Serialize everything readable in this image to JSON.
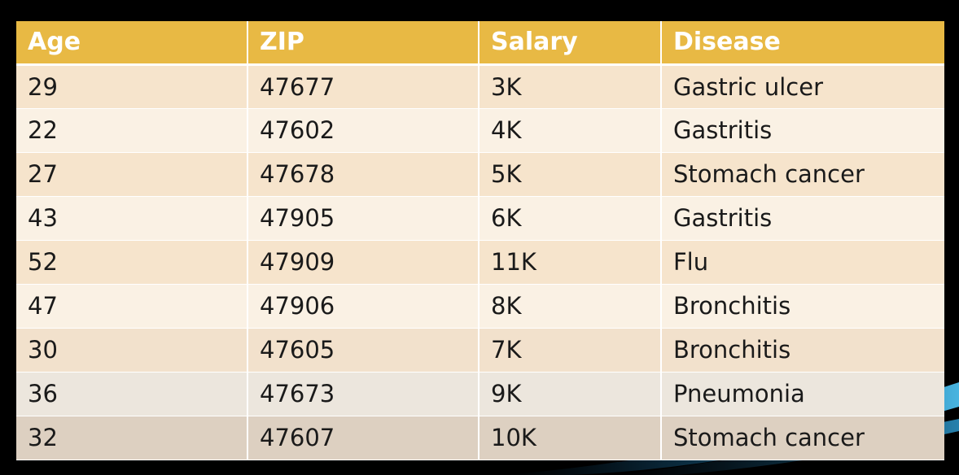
{
  "table": {
    "headers": [
      "Age",
      "ZIP",
      "Salary",
      "Disease"
    ],
    "rows": [
      [
        "29",
        "47677",
        "3K",
        "Gastric ulcer"
      ],
      [
        "22",
        "47602",
        "4K",
        "Gastritis"
      ],
      [
        "27",
        "47678",
        "5K",
        "Stomach cancer"
      ],
      [
        "43",
        "47905",
        "6K",
        "Gastritis"
      ],
      [
        "52",
        "47909",
        "11K",
        "Flu"
      ],
      [
        "47",
        "47906",
        "8K",
        "Bronchitis"
      ],
      [
        "30",
        "47605",
        "7K",
        "Bronchitis"
      ],
      [
        "36",
        "47673",
        "9K",
        "Pneumonia"
      ],
      [
        "32",
        "47607",
        "10K",
        "Stomach cancer"
      ]
    ]
  },
  "colors": {
    "header_background": "#e8b944",
    "header_text": "#ffffff",
    "row_odd": "#f6e4cc",
    "row_even": "#faf1e4",
    "slide_background": "#000000",
    "accent_swoosh": "#2a8fc0"
  }
}
